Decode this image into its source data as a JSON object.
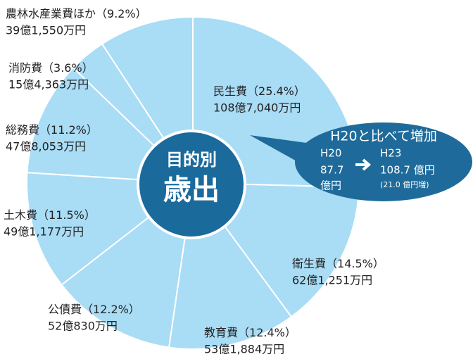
{
  "chart_data": {
    "type": "pie",
    "categories": [
      "民生費",
      "衛生費",
      "教育費",
      "公債費",
      "土木費",
      "総務費",
      "消防費",
      "農林水産業費ほか"
    ],
    "values": [
      25.4,
      14.5,
      12.4,
      12.2,
      11.5,
      11.2,
      3.6,
      9.2
    ],
    "value_labels": [
      "（25.4%）",
      "（14.5%）",
      "（12.4%）",
      "（12.2%）",
      "（11.5%）",
      "（11.2%）",
      "（3.6%）",
      "（9.2%）"
    ],
    "amounts": [
      "108億7,040万円",
      "62億1,251万円",
      "53億1,884万円",
      "52億830万円",
      "49億1,177万円",
      "47億8,053万円",
      "15億4,363万円",
      "39億1,550万円"
    ],
    "color": "#a9dcf5",
    "center": {
      "line1": "目的別",
      "line2": "歳出"
    },
    "callout": {
      "title": "H20と比べて増加",
      "from_label": "H20",
      "from_value": "87.7",
      "from_unit": "億円",
      "to_label": "H23",
      "to_value": "108.7 億円",
      "to_note": "(21.0 億円増)"
    }
  }
}
